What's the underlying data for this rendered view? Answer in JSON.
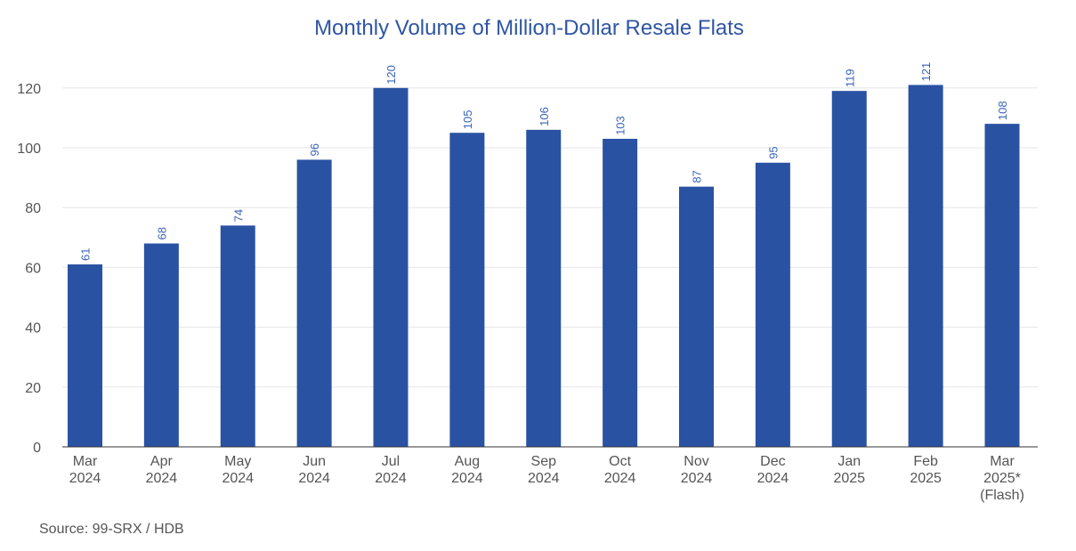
{
  "chart_data": {
    "type": "bar",
    "title": "Monthly Volume of Million-Dollar Resale Flats",
    "categories": [
      [
        "Mar",
        "2024"
      ],
      [
        "Apr",
        "2024"
      ],
      [
        "May",
        "2024"
      ],
      [
        "Jun",
        "2024"
      ],
      [
        "Jul",
        "2024"
      ],
      [
        "Aug",
        "2024"
      ],
      [
        "Sep",
        "2024"
      ],
      [
        "Oct",
        "2024"
      ],
      [
        "Nov",
        "2024"
      ],
      [
        "Dec",
        "2024"
      ],
      [
        "Jan",
        "2025"
      ],
      [
        "Feb",
        "2025"
      ],
      [
        "Mar",
        "2025*",
        "(Flash)"
      ]
    ],
    "values": [
      61,
      68,
      74,
      96,
      120,
      105,
      106,
      103,
      87,
      95,
      119,
      121,
      108
    ],
    "ylim": [
      0,
      130
    ],
    "yticks": [
      0,
      20,
      40,
      60,
      80,
      100,
      120
    ],
    "xlabel": "",
    "ylabel": "",
    "grid": true,
    "legend": "none",
    "bar_color": "#2a52a3",
    "label_color": "#3a64b8"
  },
  "source": "Source: 99-SRX / HDB"
}
